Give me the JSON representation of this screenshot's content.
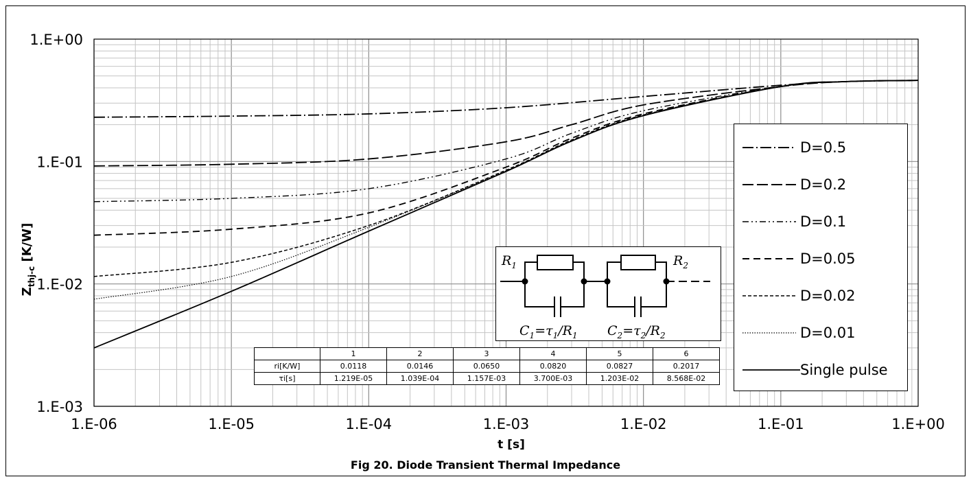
{
  "caption": "Fig 20. Diode Transient Thermal Impedance",
  "chart_data": {
    "type": "line",
    "xscale": "log",
    "yscale": "log",
    "xlim": [
      1e-06,
      1
    ],
    "ylim": [
      0.001,
      1
    ],
    "grid": true,
    "xlabel": "t [s]",
    "ylabel_main": "Z",
    "ylabel_sub": "thj-c",
    "ylabel_unit": "[K/W]",
    "x_ticks": [
      1e-06,
      1e-05,
      0.0001,
      0.001,
      0.01,
      0.1,
      1
    ],
    "x_tick_labels": [
      "1.E-06",
      "1.E-05",
      "1.E-04",
      "1.E-03",
      "1.E-02",
      "1.E-01",
      "1.E+00"
    ],
    "y_ticks": [
      0.001,
      0.01,
      0.1,
      1
    ],
    "y_tick_labels": [
      "1.E-03",
      "1.E-02",
      "1.E-01",
      "1.E+00"
    ],
    "legend_position": "right",
    "series": [
      {
        "name": "D=0.5",
        "dash": "dash-dot",
        "points": [
          [
            1e-06,
            0.23
          ],
          [
            1e-05,
            0.235
          ],
          [
            0.0001,
            0.245
          ],
          [
            0.001,
            0.275
          ],
          [
            0.01,
            0.34
          ],
          [
            0.1,
            0.42
          ],
          [
            0.3,
            0.45
          ],
          [
            1,
            0.46
          ]
        ]
      },
      {
        "name": "D=0.2",
        "dash": "long-dash",
        "points": [
          [
            1e-06,
            0.092
          ],
          [
            1e-05,
            0.095
          ],
          [
            0.0001,
            0.105
          ],
          [
            0.001,
            0.145
          ],
          [
            0.003,
            0.2
          ],
          [
            0.01,
            0.29
          ],
          [
            0.1,
            0.41
          ],
          [
            0.3,
            0.45
          ],
          [
            1,
            0.46
          ]
        ]
      },
      {
        "name": "D=0.1",
        "dash": "dash-dot-dot",
        "points": [
          [
            1e-06,
            0.047
          ],
          [
            1e-05,
            0.05
          ],
          [
            0.0001,
            0.06
          ],
          [
            0.001,
            0.105
          ],
          [
            0.003,
            0.17
          ],
          [
            0.01,
            0.26
          ],
          [
            0.1,
            0.41
          ],
          [
            0.3,
            0.45
          ],
          [
            1,
            0.46
          ]
        ]
      },
      {
        "name": "D=0.05",
        "dash": "dash",
        "points": [
          [
            1e-06,
            0.025
          ],
          [
            1e-05,
            0.028
          ],
          [
            0.0001,
            0.038
          ],
          [
            0.001,
            0.09
          ],
          [
            0.003,
            0.155
          ],
          [
            0.01,
            0.245
          ],
          [
            0.1,
            0.41
          ],
          [
            0.3,
            0.45
          ],
          [
            1,
            0.46
          ]
        ]
      },
      {
        "name": "D=0.02",
        "dash": "short-dash",
        "points": [
          [
            1e-06,
            0.0115
          ],
          [
            1e-05,
            0.015
          ],
          [
            0.0001,
            0.03
          ],
          [
            0.001,
            0.085
          ],
          [
            0.003,
            0.15
          ],
          [
            0.01,
            0.24
          ],
          [
            0.1,
            0.41
          ],
          [
            0.3,
            0.45
          ],
          [
            1,
            0.46
          ]
        ]
      },
      {
        "name": "D=0.01",
        "dash": "dotted",
        "points": [
          [
            1e-06,
            0.0075
          ],
          [
            1e-05,
            0.0115
          ],
          [
            0.0001,
            0.029
          ],
          [
            0.001,
            0.084
          ],
          [
            0.003,
            0.148
          ],
          [
            0.01,
            0.238
          ],
          [
            0.1,
            0.41
          ],
          [
            0.3,
            0.45
          ],
          [
            1,
            0.46
          ]
        ]
      },
      {
        "name": "Single pulse",
        "dash": "solid",
        "points": [
          [
            1e-06,
            0.003
          ],
          [
            1e-05,
            0.0087
          ],
          [
            0.0001,
            0.027
          ],
          [
            0.001,
            0.083
          ],
          [
            0.003,
            0.147
          ],
          [
            0.01,
            0.237
          ],
          [
            0.1,
            0.41
          ],
          [
            0.3,
            0.45
          ],
          [
            1,
            0.46
          ]
        ]
      }
    ]
  },
  "circuit": {
    "r1": "R",
    "r1_sub": "1",
    "r2": "R",
    "r2_sub": "2",
    "c1_formula": [
      "C",
      "1",
      "=τ",
      "1",
      "/R",
      "1"
    ],
    "c2_formula": [
      "C",
      "2",
      "=τ",
      "2",
      "/R",
      "2"
    ]
  },
  "table": {
    "header": [
      "",
      "1",
      "2",
      "3",
      "4",
      "5",
      "6"
    ],
    "rows": [
      [
        "ri[K/W]",
        "0.0118",
        "0.0146",
        "0.0650",
        "0.0820",
        "0.0827",
        "0.2017"
      ],
      [
        "τi[s]",
        "1.219E-05",
        "1.039E-04",
        "1.157E-03",
        "3.700E-03",
        "1.203E-02",
        "8.568E-02"
      ]
    ]
  }
}
